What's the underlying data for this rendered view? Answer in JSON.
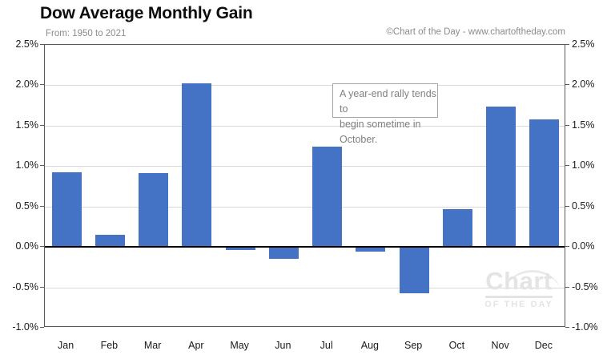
{
  "header": {
    "title": "Dow Average Monthly Gain",
    "subtitle": "From: 1950 to 2021",
    "copyright": "©Chart of the Day - www.chartoftheday.com"
  },
  "annotation": {
    "line1": "A year-end rally tends to",
    "line2": "begin sometime in October."
  },
  "watermark": {
    "line1": "Chart",
    "line2": "OF THE DAY"
  },
  "colors": {
    "bar": "#4472C4",
    "gridline": "#d9d9d9",
    "zero_line": "#000000",
    "plot_border": "#595959",
    "subtitle_text": "#8c8c8c",
    "annotation_text": "#808080",
    "watermark_text": "#e4e4e4"
  },
  "chart_data": {
    "type": "bar",
    "title": "Dow Average Monthly Gain",
    "subtitle": "From: 1950 to 2021",
    "categories": [
      "Jan",
      "Feb",
      "Mar",
      "Apr",
      "May",
      "Jun",
      "Jul",
      "Aug",
      "Sep",
      "Oct",
      "Nov",
      "Dec"
    ],
    "values": [
      0.92,
      0.15,
      0.91,
      2.02,
      -0.04,
      -0.15,
      1.24,
      -0.06,
      -0.57,
      0.47,
      1.74,
      1.58
    ],
    "unit": "%",
    "xlabel": "",
    "ylabel": "",
    "ylim": [
      -1.0,
      2.5
    ],
    "y_tick_values": [
      2.5,
      2.0,
      1.5,
      1.0,
      0.5,
      0.0,
      -0.5,
      -1.0
    ],
    "y_tick_labels": [
      "2.5%",
      "2.0%",
      "1.5%",
      "1.0%",
      "0.5%",
      "0.0%",
      "-0.5%",
      "-1.0%"
    ],
    "y_axis_sides": "both",
    "grid": true,
    "bar_color": "#4472C4",
    "annotation": "A year-end rally tends to begin sometime in October."
  }
}
